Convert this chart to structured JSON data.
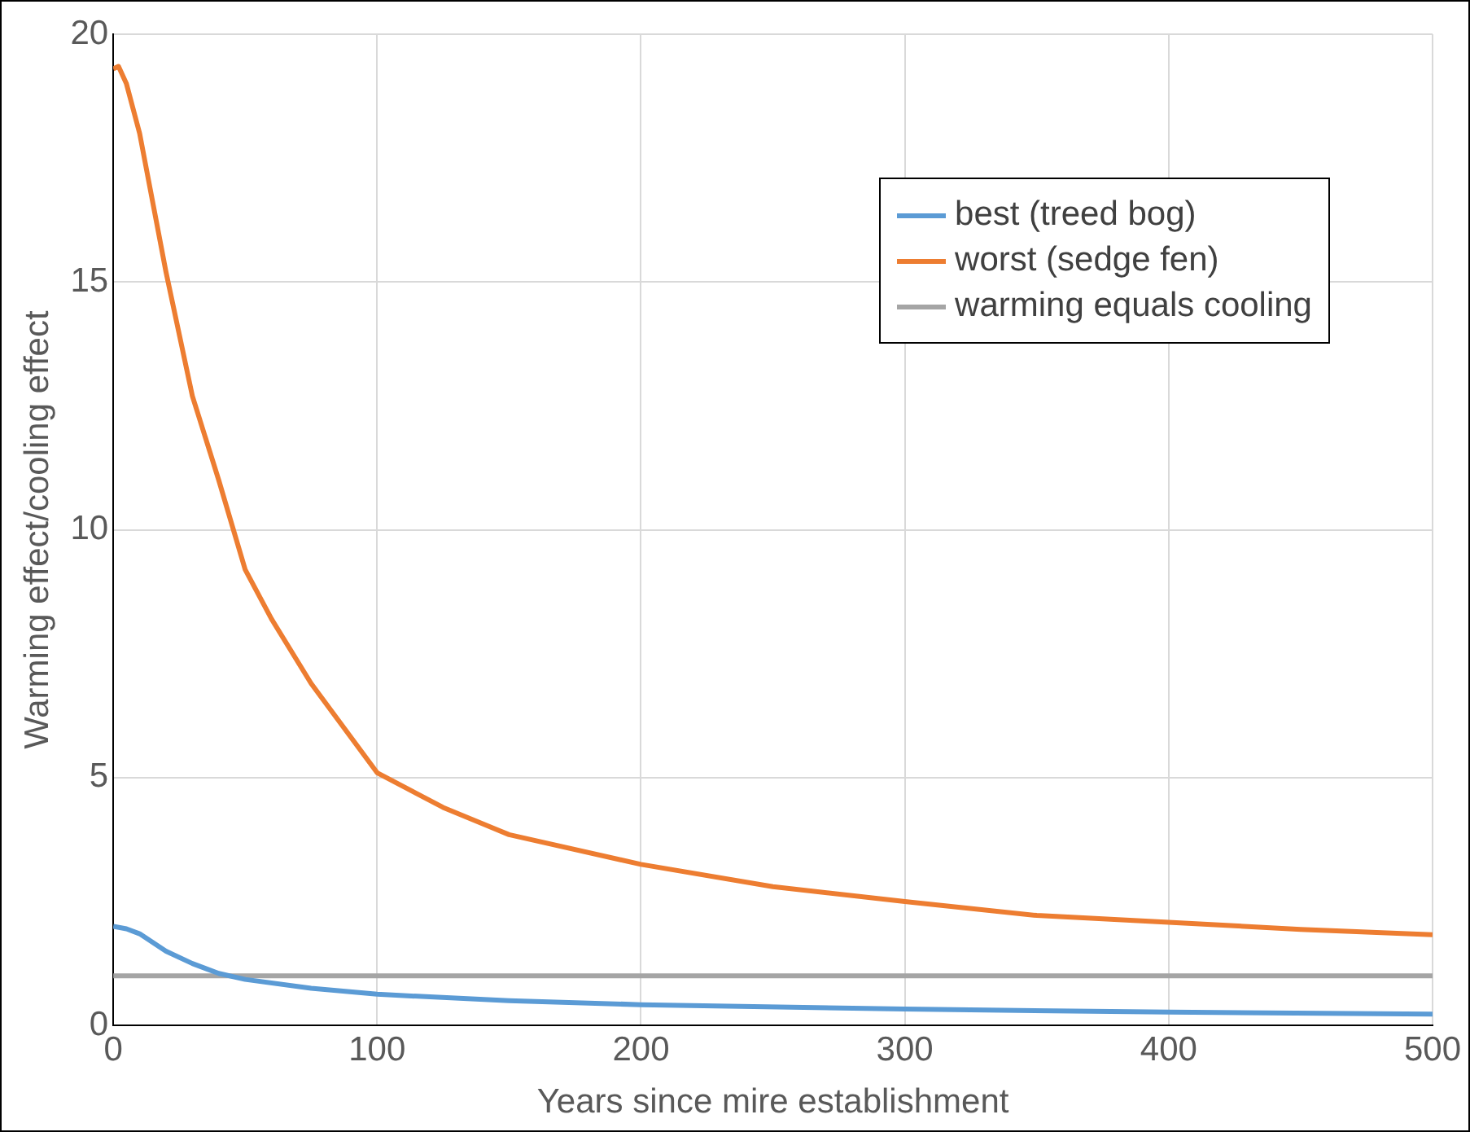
{
  "chart_data": {
    "type": "line",
    "xlabel": "Years since mire establishment",
    "ylabel": "Warming effect/cooling effect",
    "xlim": [
      0,
      500
    ],
    "xticks": [
      0,
      100,
      200,
      300,
      400,
      500
    ],
    "ylim": [
      0,
      20
    ],
    "yticks": [
      0,
      5,
      10,
      15,
      20
    ],
    "grid": true,
    "legend": "top right",
    "marker": "none",
    "line_style": "solid",
    "series": [
      {
        "name": "best (treed bog)",
        "color": "#5b9bd5",
        "x": [
          0,
          5,
          10,
          20,
          30,
          40,
          50,
          75,
          100,
          150,
          200,
          300,
          400,
          500
        ],
        "values": [
          2.0,
          1.95,
          1.85,
          1.5,
          1.25,
          1.05,
          0.93,
          0.75,
          0.63,
          0.5,
          0.42,
          0.33,
          0.27,
          0.23
        ]
      },
      {
        "name": "worst (sedge fen)",
        "color": "#ed7d31",
        "x": [
          0,
          2,
          5,
          10,
          20,
          30,
          40,
          50,
          60,
          75,
          100,
          125,
          150,
          200,
          250,
          300,
          350,
          400,
          450,
          500
        ],
        "values": [
          19.3,
          19.35,
          19.0,
          18.0,
          15.2,
          12.7,
          11.0,
          9.2,
          8.2,
          6.9,
          5.1,
          4.4,
          3.85,
          3.25,
          2.8,
          2.5,
          2.22,
          2.08,
          1.94,
          1.83
        ]
      },
      {
        "name": "warming equals cooling",
        "color": "#a5a5a5",
        "x": [
          0,
          500
        ],
        "values": [
          1,
          1
        ]
      }
    ]
  }
}
